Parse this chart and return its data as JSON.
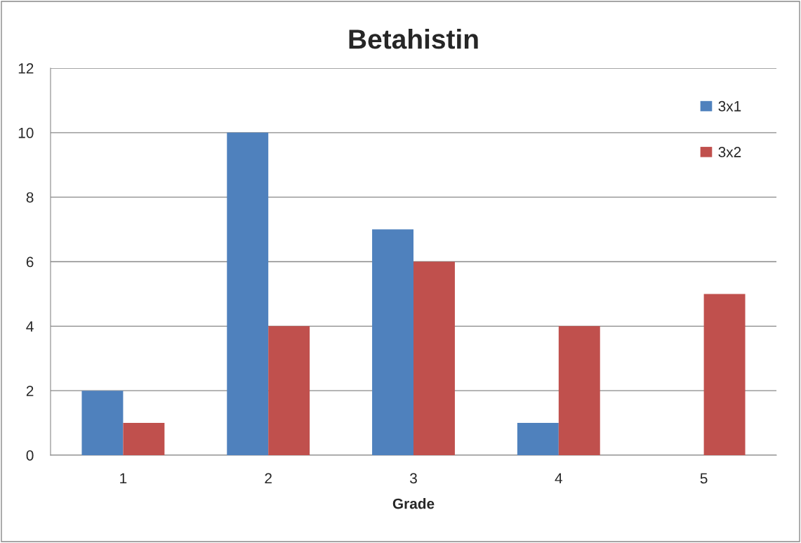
{
  "chart_data": {
    "type": "bar",
    "title": "Betahistin",
    "xlabel": "Grade",
    "categories": [
      "1",
      "2",
      "3",
      "4",
      "5"
    ],
    "series": [
      {
        "name": "3x1",
        "color": "#4f81bd",
        "values": [
          2,
          10,
          7,
          1,
          0
        ]
      },
      {
        "name": "3x2",
        "color": "#c0504d",
        "values": [
          1,
          4,
          6,
          4,
          5
        ]
      }
    ],
    "ylim": [
      0,
      12
    ],
    "yticks": [
      0,
      2,
      4,
      6,
      8,
      10,
      12
    ],
    "grid": "y",
    "legend": "top right"
  }
}
